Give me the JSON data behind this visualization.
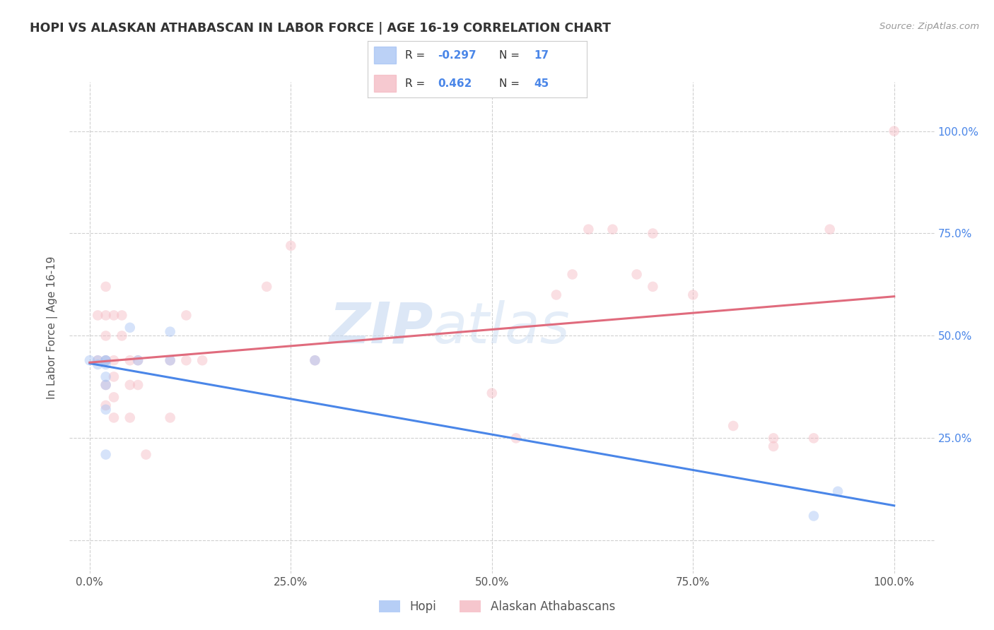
{
  "title": "HOPI VS ALASKAN ATHABASCAN IN LABOR FORCE | AGE 16-19 CORRELATION CHART",
  "source": "Source: ZipAtlas.com",
  "ylabel": "In Labor Force | Age 16-19",
  "watermark": "ZIPatlas",
  "hopi_color": "#a4c2f4",
  "athabascan_color": "#f4b8c1",
  "hopi_line_color": "#4a86e8",
  "athabascan_line_color": "#e06b7d",
  "right_tick_color": "#4a86e8",
  "hopi_R": -0.297,
  "hopi_N": 17,
  "athabascan_R": 0.462,
  "athabascan_N": 45,
  "hopi_x": [
    0.0,
    0.01,
    0.01,
    0.02,
    0.02,
    0.02,
    0.02,
    0.02,
    0.02,
    0.02,
    0.05,
    0.06,
    0.1,
    0.1,
    0.28,
    0.9,
    0.93
  ],
  "hopi_y": [
    0.44,
    0.44,
    0.43,
    0.44,
    0.44,
    0.43,
    0.4,
    0.38,
    0.32,
    0.21,
    0.52,
    0.44,
    0.51,
    0.44,
    0.44,
    0.06,
    0.12
  ],
  "athabascan_x": [
    0.01,
    0.01,
    0.02,
    0.02,
    0.02,
    0.02,
    0.02,
    0.02,
    0.03,
    0.03,
    0.03,
    0.03,
    0.03,
    0.04,
    0.04,
    0.05,
    0.05,
    0.05,
    0.06,
    0.06,
    0.07,
    0.1,
    0.1,
    0.12,
    0.12,
    0.14,
    0.22,
    0.25,
    0.28,
    0.5,
    0.53,
    0.58,
    0.6,
    0.62,
    0.65,
    0.68,
    0.7,
    0.7,
    0.75,
    0.8,
    0.85,
    0.85,
    0.9,
    0.92,
    1.0
  ],
  "athabascan_y": [
    0.55,
    0.44,
    0.62,
    0.55,
    0.5,
    0.44,
    0.38,
    0.33,
    0.55,
    0.44,
    0.4,
    0.35,
    0.3,
    0.55,
    0.5,
    0.44,
    0.38,
    0.3,
    0.44,
    0.38,
    0.21,
    0.44,
    0.3,
    0.55,
    0.44,
    0.44,
    0.62,
    0.72,
    0.44,
    0.36,
    0.25,
    0.6,
    0.65,
    0.76,
    0.76,
    0.65,
    0.75,
    0.62,
    0.6,
    0.28,
    0.25,
    0.23,
    0.25,
    0.76,
    1.0
  ],
  "xlim": [
    -0.025,
    1.05
  ],
  "ylim": [
    -0.08,
    1.12
  ],
  "xticks": [
    0.0,
    0.25,
    0.5,
    0.75,
    1.0
  ],
  "yticks": [
    0.0,
    0.25,
    0.5,
    0.75,
    1.0
  ],
  "xticklabels": [
    "0.0%",
    "25.0%",
    "50.0%",
    "75.0%",
    "100.0%"
  ],
  "right_yticklabels": [
    "",
    "25.0%",
    "50.0%",
    "75.0%",
    "100.0%"
  ],
  "marker_size": 110,
  "marker_alpha": 0.45,
  "line_width": 2.2,
  "background_color": "#ffffff",
  "grid_color": "#d0d0d0",
  "title_color": "#333333",
  "legend_text_color": "#333333",
  "legend_val_color": "#4a86e8"
}
